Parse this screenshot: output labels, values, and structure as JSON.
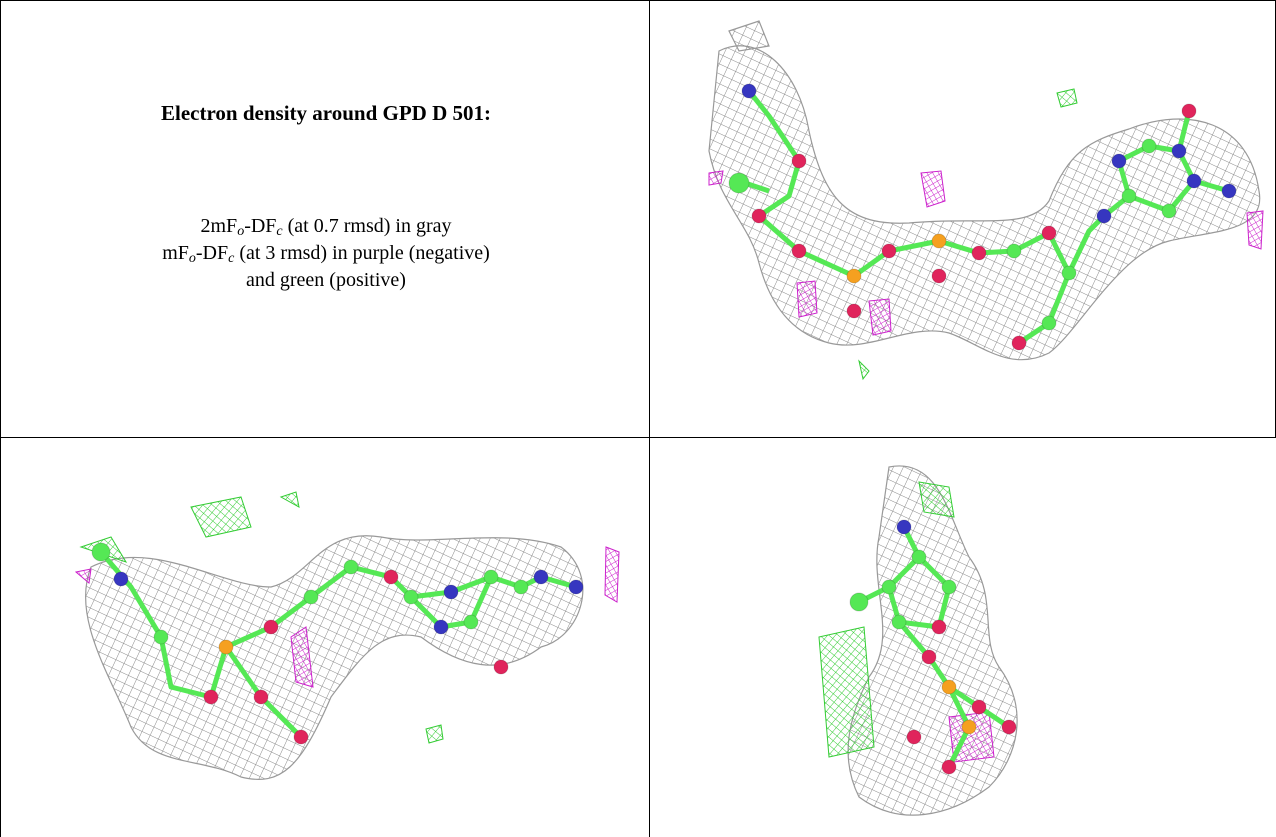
{
  "header": {
    "title": "Electron density around GPD D 501:"
  },
  "legend": {
    "lines": [
      [
        "2mF",
        "o",
        "-DF",
        "c",
        " (at 0.7 rmsd) in gray"
      ],
      [
        "mF",
        "o",
        "-DF",
        "c",
        " (at 3 rmsd) in purple (negative)"
      ],
      [
        "and green (positive)"
      ]
    ]
  }
}
